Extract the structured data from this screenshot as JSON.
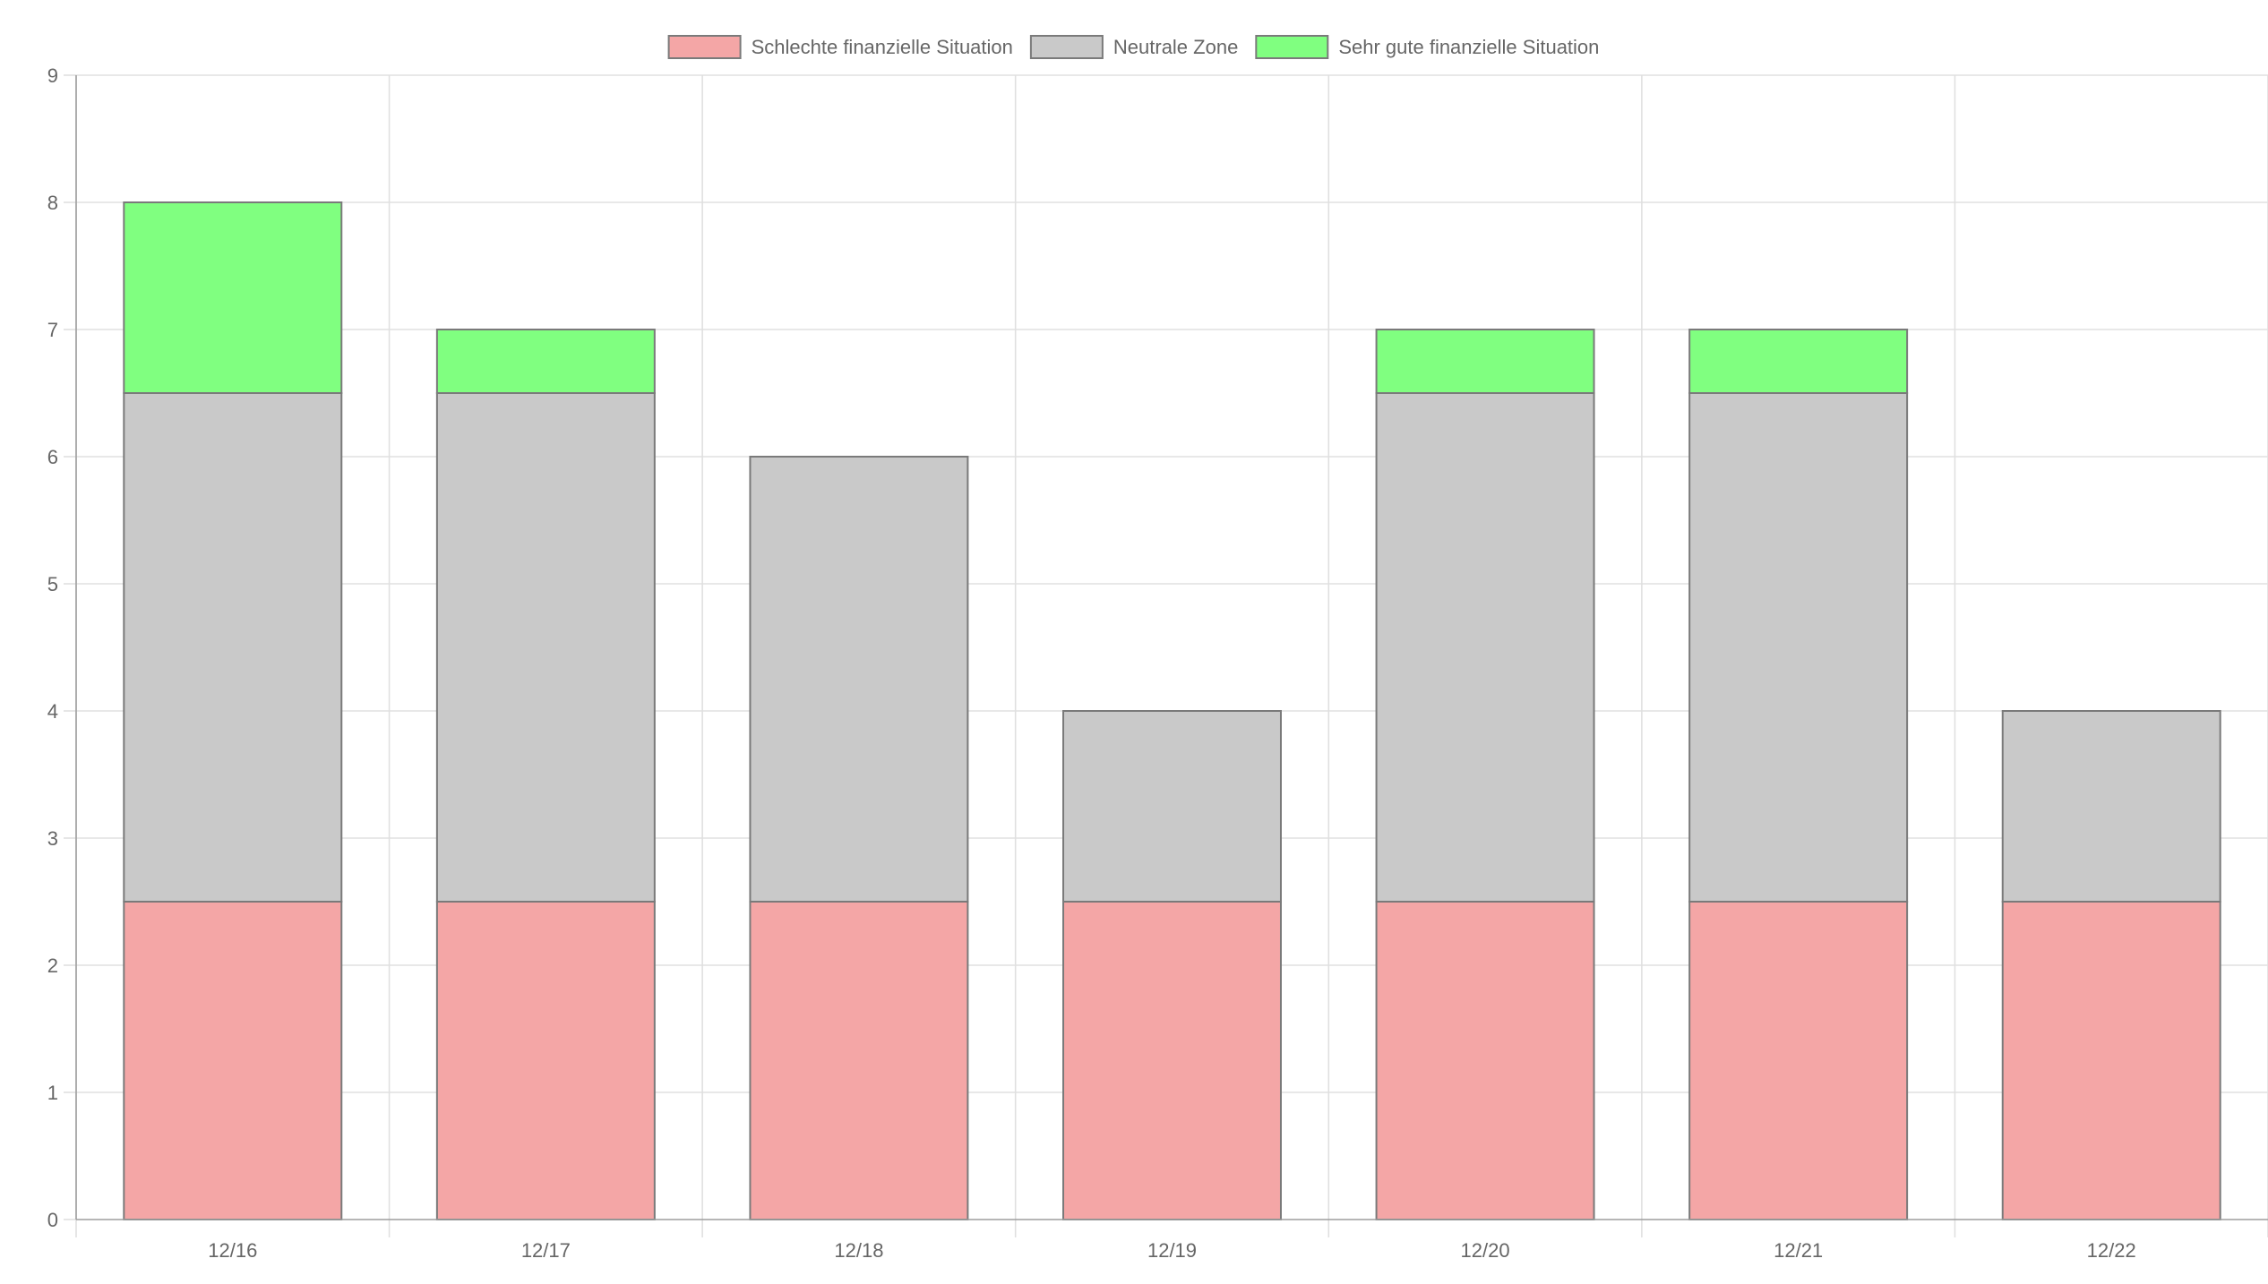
{
  "chart_data": {
    "type": "bar",
    "stacked": true,
    "title": "",
    "xlabel": "",
    "ylabel": "",
    "ylim": [
      0,
      9
    ],
    "ytick_step": 1,
    "grid": true,
    "legend_position": "top-center",
    "categories": [
      "12/16",
      "12/17",
      "12/18",
      "12/19",
      "12/20",
      "12/21",
      "12/22"
    ],
    "series": [
      {
        "name": "Schlechte finanzielle Situation",
        "color": "#f4a6a6",
        "values": [
          2.5,
          2.5,
          2.5,
          2.5,
          2.5,
          2.5,
          2.5
        ]
      },
      {
        "name": "Neutrale Zone",
        "color": "#c9c9c9",
        "values": [
          4,
          4,
          3.5,
          1.5,
          4,
          4,
          1.5
        ]
      },
      {
        "name": "Sehr gute finanzielle Situation",
        "color": "#80ff80",
        "values": [
          1.5,
          0.5,
          0,
          0,
          0.5,
          0.5,
          0
        ]
      }
    ]
  }
}
